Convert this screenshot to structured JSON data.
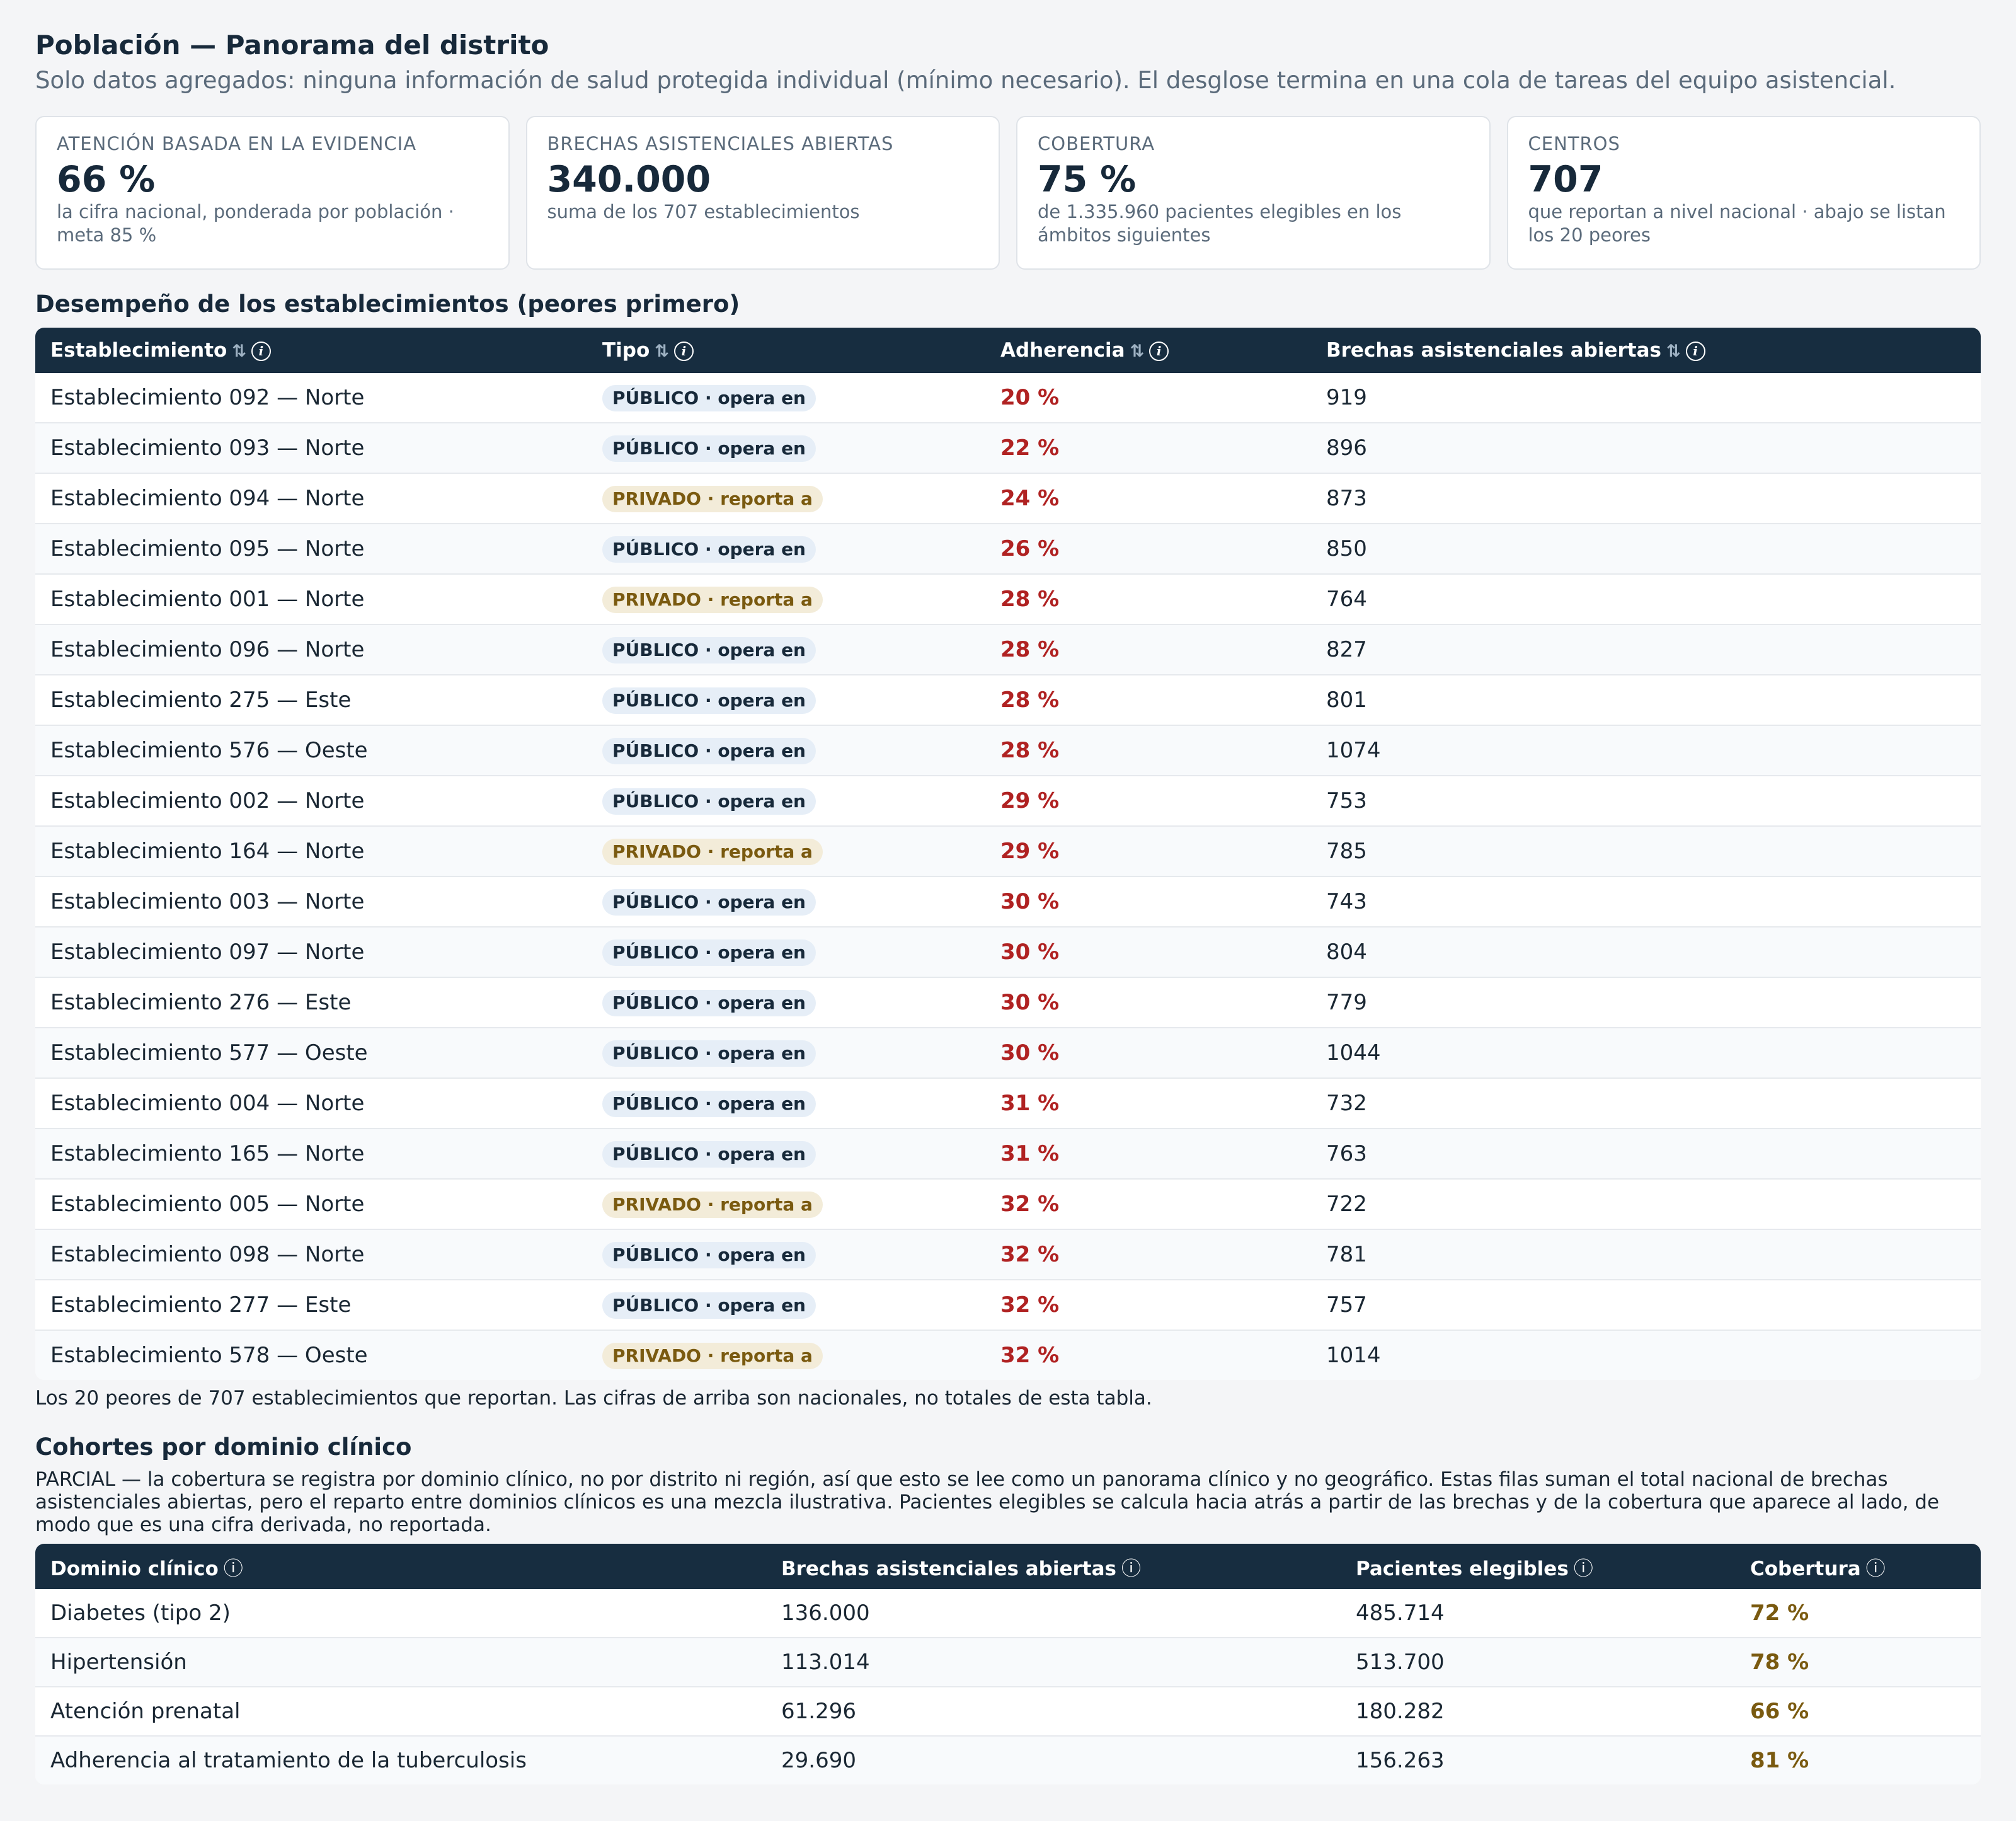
{
  "header": {
    "title": "Población — Panorama del distrito",
    "subtitle": "Solo datos agregados: ninguna información de salud protegida individual (mínimo necesario). El desglose termina en una cola de tareas del equipo asistencial."
  },
  "kpis": [
    {
      "label": "ATENCIÓN BASADA EN LA EVIDENCIA",
      "value": "66 %",
      "note": "la cifra nacional, ponderada por población · meta 85 %"
    },
    {
      "label": "BRECHAS ASISTENCIALES ABIERTAS",
      "value": "340.000",
      "note": "suma de los 707 establecimientos"
    },
    {
      "label": "COBERTURA",
      "value": "75 %",
      "note": "de 1.335.960 pacientes elegibles en los ámbitos siguientes"
    },
    {
      "label": "CENTROS",
      "value": "707",
      "note": "que reportan a nivel nacional · abajo se listan los 20 peores"
    }
  ],
  "facilities": {
    "title": "Desempeño de los establecimientos (peores primero)",
    "columns": [
      "Establecimiento",
      "Tipo",
      "Adherencia",
      "Brechas asistenciales abiertas"
    ],
    "rows": [
      {
        "name": "Establecimiento 092 — Norte",
        "type": "PÚBLICO · opera en",
        "kind": "pub",
        "adherence": "20 %",
        "gaps": "919"
      },
      {
        "name": "Establecimiento 093 — Norte",
        "type": "PÚBLICO · opera en",
        "kind": "pub",
        "adherence": "22 %",
        "gaps": "896"
      },
      {
        "name": "Establecimiento 094 — Norte",
        "type": "PRIVADO · reporta a",
        "kind": "priv",
        "adherence": "24 %",
        "gaps": "873"
      },
      {
        "name": "Establecimiento 095 — Norte",
        "type": "PÚBLICO · opera en",
        "kind": "pub",
        "adherence": "26 %",
        "gaps": "850"
      },
      {
        "name": "Establecimiento 001 — Norte",
        "type": "PRIVADO · reporta a",
        "kind": "priv",
        "adherence": "28 %",
        "gaps": "764"
      },
      {
        "name": "Establecimiento 096 — Norte",
        "type": "PÚBLICO · opera en",
        "kind": "pub",
        "adherence": "28 %",
        "gaps": "827"
      },
      {
        "name": "Establecimiento 275 — Este",
        "type": "PÚBLICO · opera en",
        "kind": "pub",
        "adherence": "28 %",
        "gaps": "801"
      },
      {
        "name": "Establecimiento 576 — Oeste",
        "type": "PÚBLICO · opera en",
        "kind": "pub",
        "adherence": "28 %",
        "gaps": "1074"
      },
      {
        "name": "Establecimiento 002 — Norte",
        "type": "PÚBLICO · opera en",
        "kind": "pub",
        "adherence": "29 %",
        "gaps": "753"
      },
      {
        "name": "Establecimiento 164 — Norte",
        "type": "PRIVADO · reporta a",
        "kind": "priv",
        "adherence": "29 %",
        "gaps": "785"
      },
      {
        "name": "Establecimiento 003 — Norte",
        "type": "PÚBLICO · opera en",
        "kind": "pub",
        "adherence": "30 %",
        "gaps": "743"
      },
      {
        "name": "Establecimiento 097 — Norte",
        "type": "PÚBLICO · opera en",
        "kind": "pub",
        "adherence": "30 %",
        "gaps": "804"
      },
      {
        "name": "Establecimiento 276 — Este",
        "type": "PÚBLICO · opera en",
        "kind": "pub",
        "adherence": "30 %",
        "gaps": "779"
      },
      {
        "name": "Establecimiento 577 — Oeste",
        "type": "PÚBLICO · opera en",
        "kind": "pub",
        "adherence": "30 %",
        "gaps": "1044"
      },
      {
        "name": "Establecimiento 004 — Norte",
        "type": "PÚBLICO · opera en",
        "kind": "pub",
        "adherence": "31 %",
        "gaps": "732"
      },
      {
        "name": "Establecimiento 165 — Norte",
        "type": "PÚBLICO · opera en",
        "kind": "pub",
        "adherence": "31 %",
        "gaps": "763"
      },
      {
        "name": "Establecimiento 005 — Norte",
        "type": "PRIVADO · reporta a",
        "kind": "priv",
        "adherence": "32 %",
        "gaps": "722"
      },
      {
        "name": "Establecimiento 098 — Norte",
        "type": "PÚBLICO · opera en",
        "kind": "pub",
        "adherence": "32 %",
        "gaps": "781"
      },
      {
        "name": "Establecimiento 277 — Este",
        "type": "PÚBLICO · opera en",
        "kind": "pub",
        "adherence": "32 %",
        "gaps": "757"
      },
      {
        "name": "Establecimiento 578 — Oeste",
        "type": "PRIVADO · reporta a",
        "kind": "priv",
        "adherence": "32 %",
        "gaps": "1014"
      }
    ],
    "footnote": "Los 20 peores de 707 establecimientos que reportan. Las cifras de arriba son nacionales, no totales de esta tabla."
  },
  "cohorts": {
    "title": "Cohortes por dominio clínico",
    "note": "PARCIAL — la cobertura se registra por dominio clínico, no por distrito ni región, así que esto se lee como un panorama clínico y no geográfico. Estas filas suman el total nacional de brechas asistenciales abiertas, pero el reparto entre dominios clínicos es una mezcla ilustrativa. Pacientes elegibles se calcula hacia atrás a partir de las brechas y de la cobertura que aparece al lado, de modo que es una cifra derivada, no reportada.",
    "columns": [
      "Dominio clínico",
      "Brechas asistenciales abiertas",
      "Pacientes elegibles",
      "Cobertura"
    ],
    "rows": [
      {
        "domain": "Diabetes (tipo 2)",
        "gaps": "136.000",
        "eligible": "485.714",
        "coverage": "72 %"
      },
      {
        "domain": "Hipertensión",
        "gaps": "113.014",
        "eligible": "513.700",
        "coverage": "78 %"
      },
      {
        "domain": "Atención prenatal",
        "gaps": "61.296",
        "eligible": "180.282",
        "coverage": "66 %"
      },
      {
        "domain": "Adherencia al tratamiento de la tuberculosis",
        "gaps": "29.690",
        "eligible": "156.263",
        "coverage": "81 %"
      }
    ]
  },
  "icons": {
    "sort": "⇅",
    "info": "i",
    "info_circled": "ⓘ"
  },
  "colors": {
    "header_bg": "#172d40",
    "adherence_red": "#b02222",
    "coverage_gold": "#7a5a10",
    "public_badge": "#e6eef7",
    "private_badge": "#f3ecd9"
  }
}
